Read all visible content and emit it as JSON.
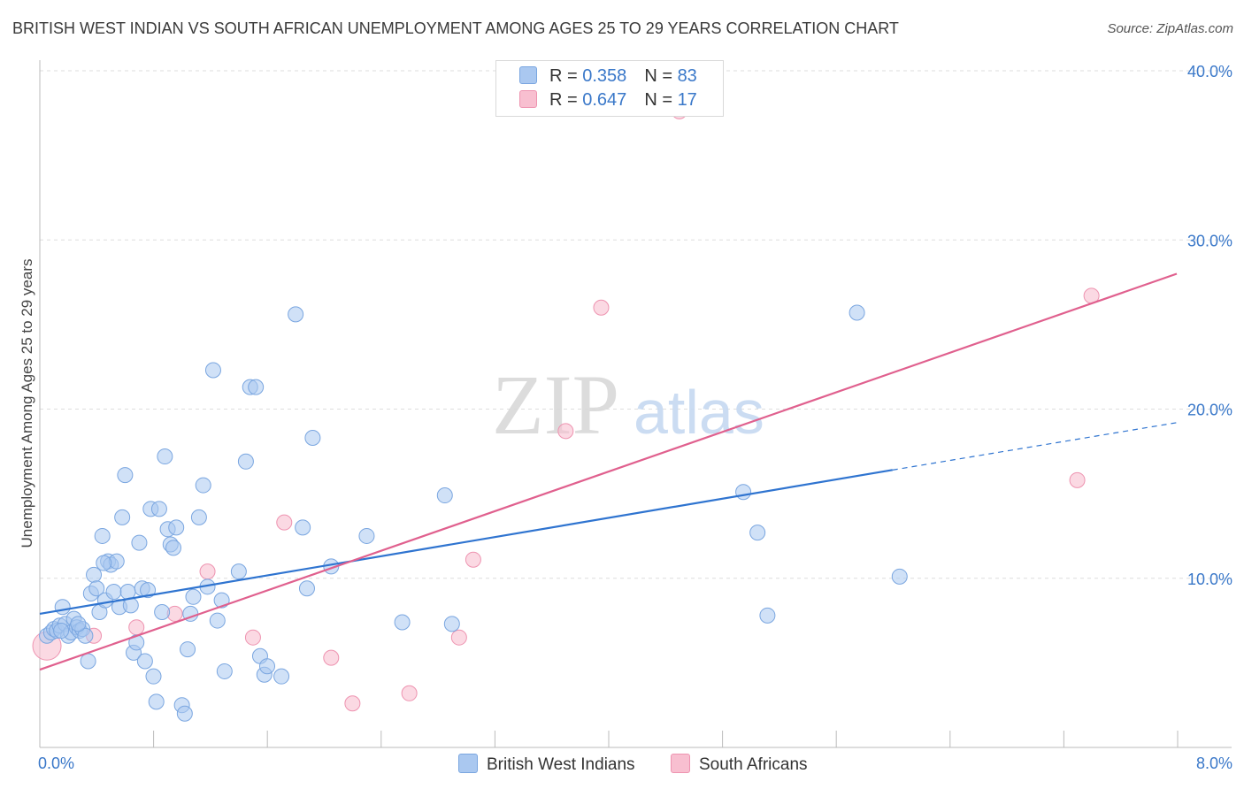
{
  "title": "BRITISH WEST INDIAN VS SOUTH AFRICAN UNEMPLOYMENT AMONG AGES 25 TO 29 YEARS CORRELATION CHART",
  "source": "Source: ZipAtlas.com",
  "watermark": {
    "zip": "ZIP",
    "atlas": "atlas"
  },
  "legend": {
    "series1": {
      "r_label": "R = ",
      "r_value": "0.358",
      "n_label": "N = ",
      "n_value": "83"
    },
    "series2": {
      "r_label": "R = ",
      "r_value": "0.647",
      "n_label": "N = ",
      "n_value": "17"
    }
  },
  "bottom_legend": {
    "series1": "British West Indians",
    "series2": "South Africans"
  },
  "colors": {
    "series1_fill": "#aac8f0",
    "series1_stroke": "#7aa6e0",
    "series1_line": "#2f74d0",
    "series2_fill": "#f8bfd0",
    "series2_stroke": "#ee93b0",
    "series2_line": "#e0608e",
    "tick_text": "#3a78c9",
    "grid": "#dddddd"
  },
  "chart_data": {
    "type": "scatter",
    "title": "BRITISH WEST INDIAN VS SOUTH AFRICAN UNEMPLOYMENT AMONG AGES 25 TO 29 YEARS CORRELATION CHART",
    "xlabel": "",
    "ylabel": "Unemployment Among Ages 25 to 29 years",
    "xlim": [
      0,
      8
    ],
    "ylim": [
      0,
      40
    ],
    "x_tick_labels": [
      {
        "value": 0,
        "label": "0.0%"
      },
      {
        "value": 8,
        "label": "8.0%"
      }
    ],
    "y_tick_labels": [
      {
        "value": 10,
        "label": "10.0%"
      },
      {
        "value": 20,
        "label": "20.0%"
      },
      {
        "value": 30,
        "label": "30.0%"
      },
      {
        "value": 40,
        "label": "40.0%"
      }
    ],
    "series": [
      {
        "name": "British West Indians",
        "r": 0.358,
        "n": 83,
        "trend": {
          "x0": 0,
          "y0": 7.9,
          "x1": 6.0,
          "y1": 16.4,
          "dashed_to_x": 8.0,
          "dashed_to_y": 19.2
        },
        "points": [
          [
            0.05,
            6.6
          ],
          [
            0.08,
            6.8
          ],
          [
            0.1,
            7.0
          ],
          [
            0.12,
            6.9
          ],
          [
            0.14,
            7.2
          ],
          [
            0.16,
            8.3
          ],
          [
            0.18,
            7.3
          ],
          [
            0.2,
            6.6
          ],
          [
            0.22,
            6.8
          ],
          [
            0.24,
            7.6
          ],
          [
            0.26,
            7.1
          ],
          [
            0.28,
            6.9
          ],
          [
            0.3,
            7.0
          ],
          [
            0.32,
            6.6
          ],
          [
            0.34,
            5.1
          ],
          [
            0.36,
            9.1
          ],
          [
            0.38,
            10.2
          ],
          [
            0.4,
            9.4
          ],
          [
            0.42,
            8.0
          ],
          [
            0.44,
            12.5
          ],
          [
            0.46,
            8.7
          ],
          [
            0.48,
            11.0
          ],
          [
            0.5,
            10.8
          ],
          [
            0.52,
            9.2
          ],
          [
            0.54,
            11.0
          ],
          [
            0.56,
            8.3
          ],
          [
            0.58,
            13.6
          ],
          [
            0.6,
            16.1
          ],
          [
            0.62,
            9.2
          ],
          [
            0.64,
            8.4
          ],
          [
            0.66,
            5.6
          ],
          [
            0.68,
            6.2
          ],
          [
            0.7,
            12.1
          ],
          [
            0.72,
            9.4
          ],
          [
            0.74,
            5.1
          ],
          [
            0.76,
            9.3
          ],
          [
            0.78,
            14.1
          ],
          [
            0.8,
            4.2
          ],
          [
            0.82,
            2.7
          ],
          [
            0.84,
            14.1
          ],
          [
            0.86,
            8.0
          ],
          [
            0.88,
            17.2
          ],
          [
            0.9,
            12.9
          ],
          [
            0.92,
            12.0
          ],
          [
            0.94,
            11.8
          ],
          [
            0.96,
            13.0
          ],
          [
            1.0,
            2.5
          ],
          [
            1.02,
            2.0
          ],
          [
            1.04,
            5.8
          ],
          [
            1.06,
            7.9
          ],
          [
            1.08,
            8.9
          ],
          [
            1.12,
            13.6
          ],
          [
            1.15,
            15.5
          ],
          [
            1.18,
            9.5
          ],
          [
            1.22,
            22.3
          ],
          [
            1.25,
            7.5
          ],
          [
            1.28,
            8.7
          ],
          [
            1.3,
            4.5
          ],
          [
            1.4,
            10.4
          ],
          [
            1.45,
            16.9
          ],
          [
            1.48,
            21.3
          ],
          [
            1.52,
            21.3
          ],
          [
            1.55,
            5.4
          ],
          [
            1.58,
            4.3
          ],
          [
            1.6,
            4.8
          ],
          [
            1.7,
            4.2
          ],
          [
            1.8,
            25.6
          ],
          [
            1.85,
            13.0
          ],
          [
            1.88,
            9.4
          ],
          [
            1.92,
            18.3
          ],
          [
            2.05,
            10.7
          ],
          [
            2.3,
            12.5
          ],
          [
            2.55,
            7.4
          ],
          [
            2.85,
            14.9
          ],
          [
            2.9,
            7.3
          ],
          [
            4.95,
            15.1
          ],
          [
            5.05,
            12.7
          ],
          [
            5.12,
            7.8
          ],
          [
            5.75,
            25.7
          ],
          [
            6.05,
            10.1
          ],
          [
            0.15,
            6.9
          ],
          [
            0.27,
            7.3
          ],
          [
            0.45,
            10.9
          ]
        ]
      },
      {
        "name": "South Africans",
        "r": 0.647,
        "n": 17,
        "trend": {
          "x0": 0,
          "y0": 4.6,
          "x1": 8.0,
          "y1": 28.0
        },
        "points": [
          [
            0.05,
            6.0
          ],
          [
            0.38,
            6.6
          ],
          [
            0.68,
            7.1
          ],
          [
            0.95,
            7.9
          ],
          [
            1.18,
            10.4
          ],
          [
            1.5,
            6.5
          ],
          [
            1.72,
            13.3
          ],
          [
            2.05,
            5.3
          ],
          [
            2.2,
            2.6
          ],
          [
            2.6,
            3.2
          ],
          [
            2.95,
            6.5
          ],
          [
            3.05,
            11.1
          ],
          [
            3.7,
            18.7
          ],
          [
            3.95,
            26.0
          ],
          [
            4.5,
            37.6
          ],
          [
            7.3,
            15.8
          ],
          [
            7.4,
            26.7
          ]
        ]
      }
    ]
  }
}
